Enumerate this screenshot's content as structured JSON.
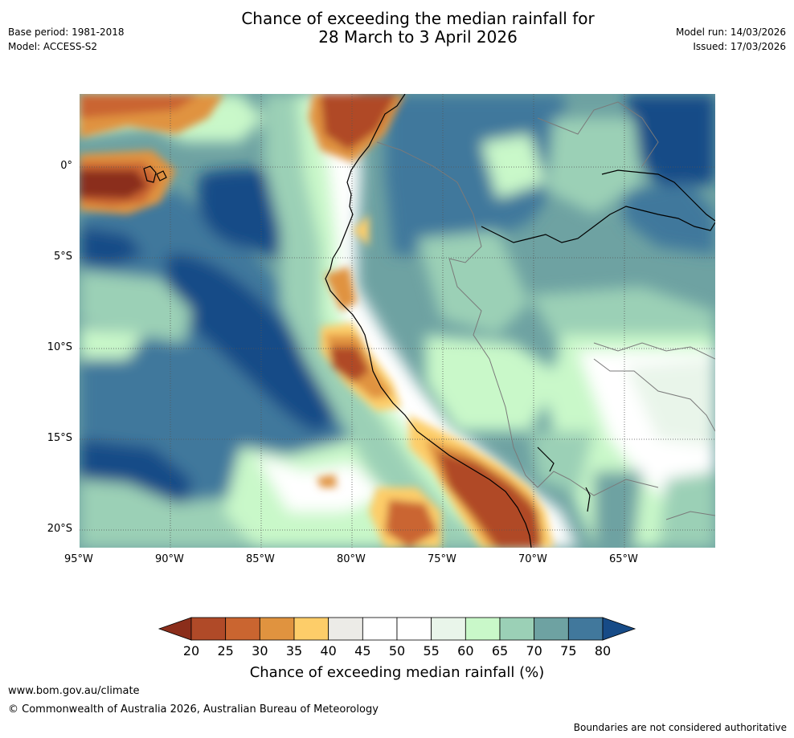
{
  "header": {
    "title_line1": "Chance of exceeding the median rainfall for",
    "title_line2": "28 March to 3 April 2026",
    "base_period": "Base period: 1981-2018",
    "model": "Model: ACCESS-S2",
    "model_run": "Model run: 14/03/2026",
    "issued": "Issued: 17/03/2026"
  },
  "map": {
    "lon_labels": [
      "95°W",
      "90°W",
      "85°W",
      "80°W",
      "75°W",
      "70°W",
      "65°W"
    ],
    "lat_labels": [
      "0°",
      "5°S",
      "10°S",
      "15°S",
      "20°S"
    ],
    "lon_range": [
      -95,
      -60
    ],
    "lat_range": [
      -21,
      4
    ]
  },
  "colorbar": {
    "ticks": [
      "20",
      "25",
      "30",
      "35",
      "40",
      "45",
      "50",
      "55",
      "60",
      "65",
      "70",
      "75",
      "80"
    ],
    "label": "Chance of exceeding median rainfall (%)",
    "colors": [
      "#8b2e1b",
      "#b04a28",
      "#ca6530",
      "#e0933f",
      "#fdcd69",
      "#ecebe7",
      "#ffffff",
      "#ffffff",
      "#e9f5ea",
      "#c9f8c9",
      "#9bd0b6",
      "#6ea2a2",
      "#41789c",
      "#174b87"
    ]
  },
  "footer": {
    "url": "www.bom.gov.au/climate",
    "copyright": "© Commonwealth of Australia 2026, Australian Bureau of Meteorology",
    "disclaimer": "Boundaries are not considered authoritative"
  }
}
